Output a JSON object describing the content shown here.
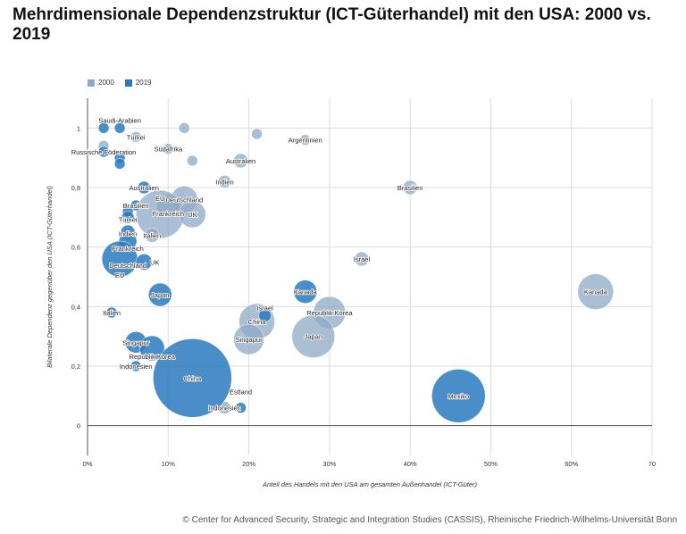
{
  "title": "Mehrdimensionale Dependenzstruktur (ICT-Güterhandel) mit den USA: 2000 vs. 2019",
  "footer": "© Center for Advanced Security, Strategic and Integration Studies (CASSIS), Rheinische Friedrich-Wilhelms-Universität Bonn",
  "chart_data": {
    "type": "scatter",
    "subtype": "bubble",
    "xlabel": "Anteil des Handels mit den USA am gesamten Außenhandel (ICT-Güter)",
    "ylabel": "Bilaterale Dependenz gegenüber den USA (ICT-Güterhandel)",
    "xlim": [
      0,
      70
    ],
    "ylim": [
      -0.1,
      1.1
    ],
    "x_ticks": [
      0,
      10,
      20,
      30,
      40,
      50,
      60,
      70
    ],
    "x_tick_labels": [
      "0%",
      "10%",
      "20%",
      "30%",
      "40%",
      "50%",
      "60%",
      "70"
    ],
    "y_ticks": [
      0,
      0.2,
      0.4,
      0.6,
      0.8,
      1
    ],
    "y_tick_labels": [
      "0",
      "0,2",
      "0,4",
      "0,6",
      "0,8",
      "1"
    ],
    "grid": true,
    "legend_position": "top-left",
    "series": [
      {
        "name": "2000",
        "color": "#8ea8c6",
        "points": [
          {
            "label": "",
            "x": 12,
            "y": 1.0,
            "size": 6
          },
          {
            "label": "",
            "x": 21,
            "y": 0.98,
            "size": 6
          },
          {
            "label": "Argentinien",
            "x": 27,
            "y": 0.96,
            "size": 6
          },
          {
            "label": "Türkei",
            "x": 6,
            "y": 0.97,
            "size": 6
          },
          {
            "label": "",
            "x": 2,
            "y": 0.94,
            "size": 6
          },
          {
            "label": "Südafrika",
            "x": 10,
            "y": 0.93,
            "size": 6
          },
          {
            "label": "",
            "x": 13,
            "y": 0.89,
            "size": 6
          },
          {
            "label": "Australien",
            "x": 19,
            "y": 0.89,
            "size": 8
          },
          {
            "label": "Indien",
            "x": 17,
            "y": 0.82,
            "size": 7
          },
          {
            "label": "Brasilien",
            "x": 40,
            "y": 0.8,
            "size": 8
          },
          {
            "label": "Deutschland",
            "x": 12,
            "y": 0.76,
            "size": 15
          },
          {
            "label": "Frankreich",
            "x": 10,
            "y": 0.74,
            "size": 13
          },
          {
            "label": "EU",
            "x": 9,
            "y": 0.71,
            "size": 27
          },
          {
            "label": "UK",
            "x": 13,
            "y": 0.71,
            "size": 15
          },
          {
            "label": "Italien",
            "x": 8,
            "y": 0.64,
            "size": 8
          },
          {
            "label": "Israel",
            "x": 34,
            "y": 0.56,
            "size": 8
          },
          {
            "label": "Kanada",
            "x": 63,
            "y": 0.45,
            "size": 20
          },
          {
            "label": "Republik Korea",
            "x": 30,
            "y": 0.38,
            "size": 18
          },
          {
            "label": "China",
            "x": 21,
            "y": 0.35,
            "size": 20
          },
          {
            "label": "Singapur",
            "x": 20,
            "y": 0.29,
            "size": 17
          },
          {
            "label": "Japan",
            "x": 28,
            "y": 0.3,
            "size": 24
          },
          {
            "label": "Indonesien",
            "x": 17,
            "y": 0.06,
            "size": 7
          }
        ]
      },
      {
        "name": "2019",
        "color": "#2a7abf",
        "points": [
          {
            "label": "",
            "x": 2,
            "y": 1.0,
            "size": 6
          },
          {
            "label": "Saudi-Arabien",
            "x": 4,
            "y": 1.0,
            "size": 6
          },
          {
            "label": "Russische Föderation",
            "x": 2,
            "y": 0.92,
            "size": 6
          },
          {
            "label": "",
            "x": 4,
            "y": 0.9,
            "size": 6
          },
          {
            "label": "",
            "x": 4,
            "y": 0.88,
            "size": 6
          },
          {
            "label": "Australien",
            "x": 7,
            "y": 0.8,
            "size": 7
          },
          {
            "label": "Brasilien",
            "x": 6,
            "y": 0.74,
            "size": 6
          },
          {
            "label": "Türkei",
            "x": 5,
            "y": 0.72,
            "size": 6
          },
          {
            "label": "Indien",
            "x": 5,
            "y": 0.7,
            "size": 7
          },
          {
            "label": "Frankreich",
            "x": 5,
            "y": 0.65,
            "size": 8
          },
          {
            "label": "Deutschland",
            "x": 5,
            "y": 0.62,
            "size": 10
          },
          {
            "label": "EU",
            "x": 4,
            "y": 0.56,
            "size": 20
          },
          {
            "label": "UK",
            "x": 7,
            "y": 0.55,
            "size": 9
          },
          {
            "label": "Japan",
            "x": 9,
            "y": 0.44,
            "size": 13
          },
          {
            "label": "Italien",
            "x": 3,
            "y": 0.38,
            "size": 6
          },
          {
            "label": "Kanada",
            "x": 27,
            "y": 0.45,
            "size": 13
          },
          {
            "label": "Israel",
            "x": 22,
            "y": 0.37,
            "size": 7
          },
          {
            "label": "Singapur",
            "x": 6,
            "y": 0.28,
            "size": 12
          },
          {
            "label": "Republik Korea",
            "x": 8,
            "y": 0.26,
            "size": 14
          },
          {
            "label": "Indonesien",
            "x": 6,
            "y": 0.2,
            "size": 6
          },
          {
            "label": "China",
            "x": 13,
            "y": 0.16,
            "size": 44
          },
          {
            "label": "Estland",
            "x": 19,
            "y": 0.06,
            "size": 6
          },
          {
            "label": "Mexiko",
            "x": 46,
            "y": 0.1,
            "size": 30
          }
        ]
      }
    ]
  }
}
